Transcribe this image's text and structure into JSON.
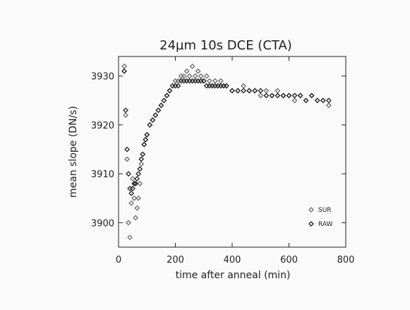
{
  "chart_data": {
    "type": "scatter",
    "title": "24µm 10s DCE (CTA)",
    "xlabel": "time after anneal (min)",
    "ylabel": "mean slope (DN/s)",
    "xlim": [
      0,
      800
    ],
    "ylim": [
      3895,
      3934
    ],
    "x_ticks": [
      "0",
      "200",
      "400",
      "600",
      "800"
    ],
    "y_ticks": [
      "3900",
      "3910",
      "3920",
      "3930"
    ],
    "x_tick_values": [
      0,
      200,
      400,
      600,
      800
    ],
    "y_tick_values": [
      3900,
      3910,
      3920,
      3930
    ],
    "grid": false,
    "legend_position": "bottom-right",
    "marker": "diamond",
    "series": [
      {
        "name": "SUR",
        "color": "#6e6e6e",
        "x": [
          20,
          25,
          30,
          35,
          40,
          45,
          50,
          55,
          60,
          65,
          70,
          75,
          80,
          85,
          90,
          95,
          100,
          110,
          120,
          130,
          140,
          150,
          160,
          170,
          180,
          190,
          200,
          210,
          220,
          230,
          240,
          250,
          260,
          270,
          280,
          290,
          300,
          310,
          320,
          330,
          340,
          350,
          360,
          370,
          380,
          400,
          420,
          440,
          460,
          480,
          500,
          520,
          540,
          560,
          580,
          600,
          620,
          640,
          660,
          680,
          700,
          720,
          740
        ],
        "y": [
          3932,
          3922,
          3913,
          3900,
          3897,
          3904,
          3909,
          3905,
          3901,
          3903,
          3905,
          3908,
          3912,
          3914,
          3916,
          3917,
          3918,
          3920,
          3921,
          3922,
          3923,
          3924,
          3925,
          3926,
          3927,
          3928,
          3929,
          3929,
          3930,
          3930,
          3931,
          3930,
          3932,
          3930,
          3931,
          3930,
          3929,
          3930,
          3929,
          3928,
          3929,
          3928,
          3929,
          3928,
          3928,
          3927,
          3927,
          3928,
          3927,
          3927,
          3926,
          3927,
          3926,
          3927,
          3926,
          3926,
          3925,
          3926,
          3925,
          3926,
          3925,
          3925,
          3924
        ]
      },
      {
        "name": "RAW",
        "color": "#222222",
        "x": [
          20,
          25,
          30,
          35,
          40,
          45,
          50,
          55,
          60,
          65,
          70,
          75,
          80,
          85,
          90,
          95,
          100,
          110,
          120,
          130,
          140,
          150,
          160,
          170,
          180,
          190,
          200,
          210,
          220,
          230,
          240,
          250,
          260,
          270,
          280,
          290,
          300,
          310,
          320,
          330,
          340,
          350,
          360,
          370,
          380,
          400,
          420,
          440,
          460,
          480,
          500,
          520,
          540,
          560,
          580,
          600,
          620,
          640,
          660,
          680,
          700,
          720,
          740
        ],
        "y": [
          3931,
          3923,
          3915,
          3910,
          3907,
          3906,
          3907,
          3908,
          3908,
          3909,
          3910,
          3911,
          3913,
          3914,
          3916,
          3917,
          3918,
          3920,
          3921,
          3922,
          3923,
          3924,
          3925,
          3926,
          3927,
          3928,
          3928,
          3928,
          3929,
          3929,
          3929,
          3929,
          3929,
          3929,
          3929,
          3929,
          3929,
          3928,
          3928,
          3928,
          3928,
          3928,
          3928,
          3928,
          3928,
          3927,
          3927,
          3927,
          3927,
          3927,
          3927,
          3926,
          3926,
          3926,
          3926,
          3926,
          3926,
          3926,
          3925,
          3926,
          3925,
          3925,
          3925
        ]
      }
    ]
  }
}
